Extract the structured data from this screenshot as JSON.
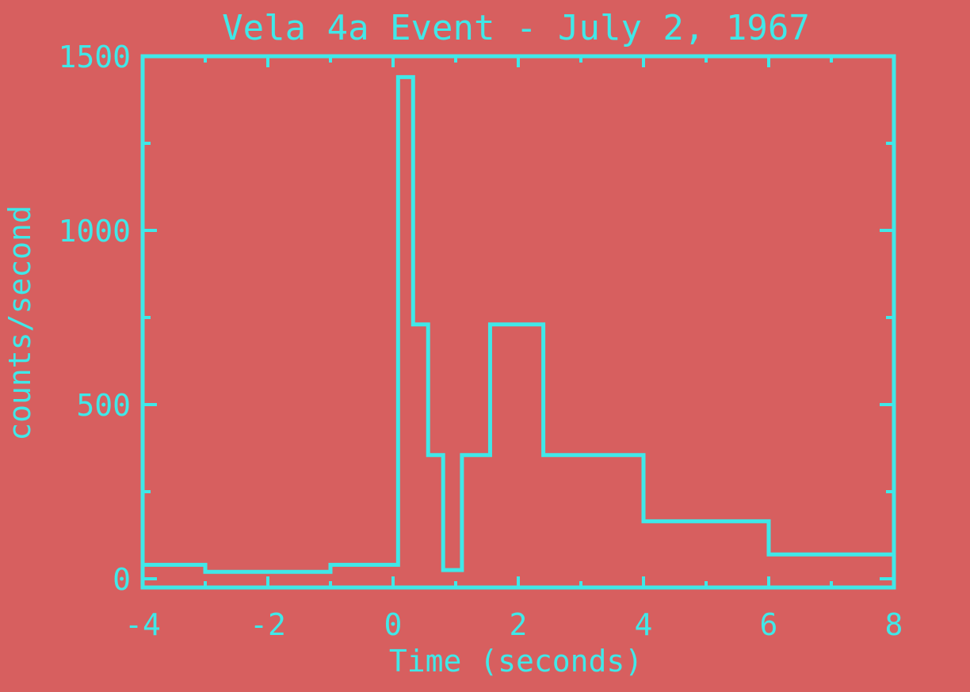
{
  "chart_data": {
    "type": "line",
    "title": "Vela 4a Event - July 2, 1967",
    "xlabel": "Time (seconds)",
    "ylabel": "counts/second",
    "xlim": [
      -4,
      8
    ],
    "ylim": [
      -25,
      1500
    ],
    "x_ticks": [
      -4,
      -2,
      0,
      2,
      4,
      6,
      8
    ],
    "y_ticks": [
      0,
      500,
      1000,
      1500
    ],
    "x_tick_labels": [
      "-4",
      "-2",
      "0",
      "2",
      "4",
      "6",
      "8"
    ],
    "y_tick_labels": [
      "0",
      "500",
      "1000",
      "1500"
    ],
    "grid": false,
    "series": [
      {
        "step": "histogram",
        "edges": [
          -4,
          -3,
          -1,
          0.08,
          0.32,
          0.56,
          0.8,
          1.1,
          1.55,
          2.4,
          4.0,
          6.0,
          8.0
        ],
        "values": [
          40,
          20,
          40,
          1440,
          730,
          355,
          25,
          355,
          730,
          355,
          165,
          70
        ]
      }
    ],
    "colors": {
      "background": "#d75f5f",
      "foreground": "#40e8e8"
    }
  }
}
